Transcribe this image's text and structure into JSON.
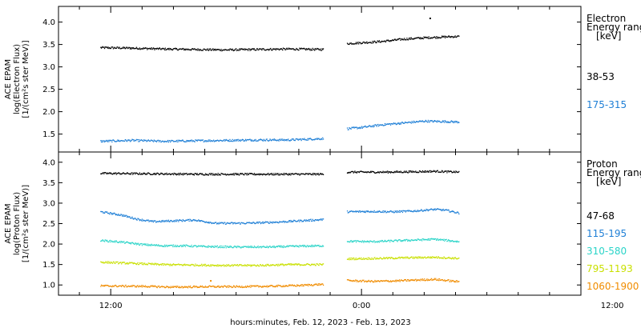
{
  "chart_data": [
    {
      "type": "scatter",
      "panel": "electron",
      "ylabel_lines": [
        "ACE EPAM",
        "log(Electron Flux)",
        "[1/(cm²s ster MeV)]"
      ],
      "ylim": [
        1.1,
        4.35
      ],
      "yticks": [
        1.5,
        2.0,
        2.5,
        3.0,
        3.5,
        4.0
      ],
      "ytick_labels": [
        "1.5",
        "2.0",
        "2.5",
        "3.0",
        "3.5",
        "4.0"
      ],
      "legend_title": [
        "Electron",
        "Energy range",
        "[keV]"
      ],
      "series": [
        {
          "name": "38-53",
          "color": "#000000",
          "segments": [
            {
              "t_start": -1.0,
              "t_end": 20.3,
              "points": [
                [
                  -1.0,
                  3.44
                ],
                [
                  2.0,
                  3.43
                ],
                [
                  5.0,
                  3.41
                ],
                [
                  8.0,
                  3.4
                ],
                [
                  11.0,
                  3.39
                ],
                [
                  14.0,
                  3.4
                ],
                [
                  17.0,
                  3.41
                ],
                [
                  20.3,
                  3.4
                ]
              ]
            },
            {
              "t_start": 22.6,
              "t_end": 33.3,
              "points": [
                [
                  22.6,
                  3.53
                ],
                [
                  24.0,
                  3.55
                ],
                [
                  26.0,
                  3.58
                ],
                [
                  28.0,
                  3.63
                ],
                [
                  30.0,
                  3.66
                ],
                [
                  32.0,
                  3.68
                ],
                [
                  33.3,
                  3.69
                ]
              ]
            }
          ],
          "outliers": [
            [
              30.5,
              4.1
            ]
          ]
        },
        {
          "name": "175-315",
          "color": "#1e7fd6",
          "segments": [
            {
              "t_start": -1.0,
              "t_end": 20.3,
              "points": [
                [
                  -1.0,
                  1.35
                ],
                [
                  2.0,
                  1.37
                ],
                [
                  5.0,
                  1.35
                ],
                [
                  8.0,
                  1.36
                ],
                [
                  11.0,
                  1.37
                ],
                [
                  14.0,
                  1.38
                ],
                [
                  17.0,
                  1.38
                ],
                [
                  20.3,
                  1.41
                ]
              ]
            },
            {
              "t_start": 22.6,
              "t_end": 33.3,
              "points": [
                [
                  22.6,
                  1.63
                ],
                [
                  24.0,
                  1.66
                ],
                [
                  26.0,
                  1.72
                ],
                [
                  28.0,
                  1.76
                ],
                [
                  30.0,
                  1.8
                ],
                [
                  32.0,
                  1.79
                ],
                [
                  33.3,
                  1.78
                ]
              ]
            }
          ],
          "outliers": []
        }
      ]
    },
    {
      "type": "scatter",
      "panel": "proton",
      "ylabel_lines": [
        "ACE EPAM",
        "log(Proton Flux)",
        "[1/(cm²s ster MeV)]"
      ],
      "ylim": [
        0.75,
        4.25
      ],
      "yticks": [
        1.0,
        1.5,
        2.0,
        2.5,
        3.0,
        3.5,
        4.0
      ],
      "ytick_labels": [
        "1.0",
        "1.5",
        "2.0",
        "2.5",
        "3.0",
        "3.5",
        "4.0"
      ],
      "legend_title": [
        "Proton",
        "Energy range",
        "[keV]"
      ],
      "series": [
        {
          "name": "47-68",
          "color": "#000000",
          "segments": [
            {
              "t_start": -1.0,
              "t_end": 20.3,
              "points": [
                [
                  -1.0,
                  3.74
                ],
                [
                  4.0,
                  3.73
                ],
                [
                  8.0,
                  3.72
                ],
                [
                  12.0,
                  3.72
                ],
                [
                  16.0,
                  3.72
                ],
                [
                  20.3,
                  3.72
                ]
              ]
            },
            {
              "t_start": 22.6,
              "t_end": 33.3,
              "points": [
                [
                  22.6,
                  3.77
                ],
                [
                  26.0,
                  3.77
                ],
                [
                  29.0,
                  3.78
                ],
                [
                  31.0,
                  3.79
                ],
                [
                  33.3,
                  3.77
                ]
              ]
            }
          ],
          "outliers": []
        },
        {
          "name": "115-195",
          "color": "#1e7fd6",
          "segments": [
            {
              "t_start": -1.0,
              "t_end": 20.3,
              "points": [
                [
                  -1.0,
                  2.8
                ],
                [
                  1.0,
                  2.72
                ],
                [
                  2.5,
                  2.62
                ],
                [
                  4.0,
                  2.56
                ],
                [
                  6.0,
                  2.58
                ],
                [
                  8.0,
                  2.6
                ],
                [
                  10.0,
                  2.52
                ],
                [
                  12.0,
                  2.52
                ],
                [
                  14.0,
                  2.53
                ],
                [
                  16.0,
                  2.55
                ],
                [
                  18.0,
                  2.58
                ],
                [
                  20.3,
                  2.61
                ]
              ]
            },
            {
              "t_start": 22.6,
              "t_end": 33.3,
              "points": [
                [
                  22.6,
                  2.8
                ],
                [
                  25.0,
                  2.81
                ],
                [
                  27.0,
                  2.8
                ],
                [
                  29.0,
                  2.82
                ],
                [
                  31.0,
                  2.86
                ],
                [
                  32.0,
                  2.84
                ],
                [
                  33.3,
                  2.77
                ]
              ]
            }
          ],
          "outliers": []
        },
        {
          "name": "310-580",
          "color": "#2ad4c8",
          "segments": [
            {
              "t_start": -1.0,
              "t_end": 20.3,
              "points": [
                [
                  -1.0,
                  2.1
                ],
                [
                  1.0,
                  2.06
                ],
                [
                  3.0,
                  2.0
                ],
                [
                  5.0,
                  1.97
                ],
                [
                  7.0,
                  1.97
                ],
                [
                  9.0,
                  1.95
                ],
                [
                  12.0,
                  1.94
                ],
                [
                  15.0,
                  1.94
                ],
                [
                  18.0,
                  1.96
                ],
                [
                  20.3,
                  1.97
                ]
              ]
            },
            {
              "t_start": 22.6,
              "t_end": 33.3,
              "points": [
                [
                  22.6,
                  2.08
                ],
                [
                  25.0,
                  2.07
                ],
                [
                  27.0,
                  2.09
                ],
                [
                  29.0,
                  2.11
                ],
                [
                  31.0,
                  2.13
                ],
                [
                  33.3,
                  2.07
                ]
              ]
            }
          ],
          "outliers": []
        },
        {
          "name": "795-1193",
          "color": "#c9e000",
          "segments": [
            {
              "t_start": -1.0,
              "t_end": 20.3,
              "points": [
                [
                  -1.0,
                  1.57
                ],
                [
                  2.0,
                  1.54
                ],
                [
                  5.0,
                  1.51
                ],
                [
                  8.0,
                  1.5
                ],
                [
                  11.0,
                  1.49
                ],
                [
                  14.0,
                  1.49
                ],
                [
                  17.0,
                  1.51
                ],
                [
                  20.3,
                  1.51
                ]
              ]
            },
            {
              "t_start": 22.6,
              "t_end": 33.3,
              "points": [
                [
                  22.6,
                  1.65
                ],
                [
                  25.0,
                  1.66
                ],
                [
                  27.0,
                  1.67
                ],
                [
                  29.0,
                  1.68
                ],
                [
                  31.0,
                  1.69
                ],
                [
                  33.3,
                  1.66
                ]
              ]
            }
          ],
          "outliers": []
        },
        {
          "name": "1060-1900",
          "color": "#f08c00",
          "segments": [
            {
              "t_start": -1.0,
              "t_end": 20.3,
              "points": [
                [
                  -1.0,
                  0.99
                ],
                [
                  3.0,
                  0.98
                ],
                [
                  6.0,
                  0.96
                ],
                [
                  9.0,
                  0.97
                ],
                [
                  12.0,
                  0.97
                ],
                [
                  15.0,
                  0.98
                ],
                [
                  18.0,
                  1.0
                ],
                [
                  20.3,
                  1.03
                ]
              ]
            },
            {
              "t_start": 22.6,
              "t_end": 33.3,
              "points": [
                [
                  22.6,
                  1.12
                ],
                [
                  25.0,
                  1.1
                ],
                [
                  27.0,
                  1.11
                ],
                [
                  29.0,
                  1.13
                ],
                [
                  31.0,
                  1.15
                ],
                [
                  33.3,
                  1.09
                ]
              ]
            }
          ],
          "outliers": [
            [
              9.5,
              1.12
            ]
          ]
        }
      ]
    }
  ],
  "x_axis": {
    "xlim": [
      -5.0,
      45.0
    ],
    "tick_hours": [
      0,
      24,
      48
    ],
    "tick_labels": [
      "12:00",
      "0:00",
      "12:00"
    ],
    "minor_step_hours": 3,
    "xlabel": "hours:minutes, Feb. 12, 2023 - Feb. 13, 2023"
  }
}
